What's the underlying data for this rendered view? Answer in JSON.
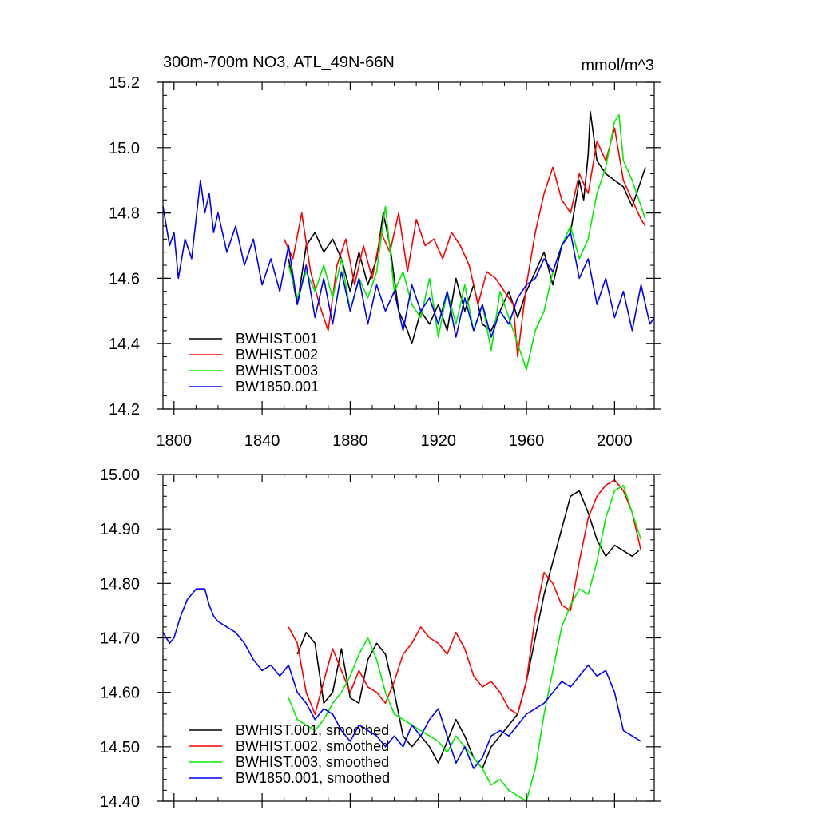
{
  "chart_data": [
    {
      "type": "line",
      "title": "300m-700m NO3, ATL_49N-66N",
      "units_label": "mmol/m^3",
      "xlim": [
        1795,
        2018
      ],
      "ylim": [
        14.2,
        15.2
      ],
      "x_ticks": [
        1800,
        1840,
        1880,
        1920,
        1960,
        2000
      ],
      "x_tick_labels": [
        "1800",
        "1840",
        "1880",
        "1920",
        "1960",
        "2000"
      ],
      "y_ticks": [
        14.2,
        14.4,
        14.6,
        14.8,
        15.0,
        15.2
      ],
      "y_tick_labels": [
        "14.2",
        "14.4",
        "14.6",
        "14.8",
        "15.0",
        "15.2"
      ],
      "legend_position": "bottom-left",
      "series": [
        {
          "name": "BWHIST.001",
          "color": "#000000",
          "x": [
            1852,
            1856,
            1860,
            1864,
            1868,
            1872,
            1876,
            1880,
            1884,
            1888,
            1892,
            1895,
            1898,
            1902,
            1906,
            1908,
            1912,
            1916,
            1920,
            1924,
            1928,
            1932,
            1936,
            1940,
            1944,
            1948,
            1952,
            1956,
            1960,
            1964,
            1968,
            1972,
            1976,
            1980,
            1984,
            1986,
            1988,
            1989,
            1992,
            1996,
            2000,
            2004,
            2008,
            2012,
            2014
          ],
          "values": [
            14.66,
            14.52,
            14.7,
            14.74,
            14.68,
            14.72,
            14.66,
            14.56,
            14.68,
            14.58,
            14.66,
            14.8,
            14.7,
            14.5,
            14.44,
            14.4,
            14.5,
            14.46,
            14.52,
            14.44,
            14.6,
            14.5,
            14.58,
            14.46,
            14.44,
            14.5,
            14.56,
            14.48,
            14.56,
            14.62,
            14.68,
            14.58,
            14.7,
            14.74,
            14.9,
            14.84,
            14.98,
            15.11,
            14.96,
            14.92,
            14.9,
            14.88,
            14.82,
            14.9,
            14.94
          ]
        },
        {
          "name": "BWHIST.002",
          "color": "#ff0000",
          "x": [
            1850,
            1854,
            1858,
            1862,
            1866,
            1870,
            1874,
            1878,
            1882,
            1886,
            1890,
            1894,
            1898,
            1902,
            1906,
            1910,
            1914,
            1918,
            1922,
            1926,
            1930,
            1934,
            1938,
            1942,
            1946,
            1950,
            1954,
            1956,
            1960,
            1964,
            1968,
            1972,
            1976,
            1980,
            1984,
            1988,
            1992,
            1996,
            2000,
            2004,
            2008,
            2012,
            2014
          ],
          "values": [
            14.72,
            14.66,
            14.8,
            14.62,
            14.52,
            14.44,
            14.64,
            14.72,
            14.58,
            14.7,
            14.6,
            14.74,
            14.68,
            14.8,
            14.62,
            14.78,
            14.7,
            14.72,
            14.66,
            14.74,
            14.7,
            14.64,
            14.52,
            14.62,
            14.6,
            14.56,
            14.52,
            14.36,
            14.58,
            14.74,
            14.86,
            14.94,
            14.84,
            14.8,
            14.92,
            14.86,
            15.02,
            14.96,
            15.06,
            14.9,
            14.84,
            14.78,
            14.76
          ]
        },
        {
          "name": "BWHIST.003",
          "color": "#00ee00",
          "x": [
            1852,
            1856,
            1860,
            1864,
            1868,
            1872,
            1876,
            1880,
            1884,
            1888,
            1892,
            1896,
            1900,
            1904,
            1908,
            1912,
            1916,
            1920,
            1924,
            1928,
            1932,
            1936,
            1940,
            1944,
            1948,
            1952,
            1956,
            1960,
            1964,
            1968,
            1972,
            1976,
            1980,
            1984,
            1988,
            1992,
            1996,
            2000,
            2002,
            2004,
            2008,
            2012,
            2014
          ],
          "values": [
            14.64,
            14.54,
            14.62,
            14.56,
            14.64,
            14.54,
            14.66,
            14.5,
            14.6,
            14.54,
            14.62,
            14.82,
            14.56,
            14.62,
            14.52,
            14.48,
            14.6,
            14.42,
            14.56,
            14.46,
            14.58,
            14.44,
            14.52,
            14.38,
            14.56,
            14.48,
            14.4,
            14.32,
            14.44,
            14.5,
            14.62,
            14.7,
            14.76,
            14.66,
            14.72,
            14.86,
            14.94,
            15.08,
            15.1,
            14.96,
            14.9,
            14.82,
            14.78
          ]
        },
        {
          "name": "BW1850.001",
          "color": "#0000ff",
          "x": [
            1795,
            1798,
            1800,
            1802,
            1805,
            1808,
            1810,
            1812,
            1814,
            1816,
            1818,
            1820,
            1824,
            1828,
            1832,
            1836,
            1840,
            1844,
            1848,
            1852,
            1856,
            1860,
            1864,
            1868,
            1872,
            1876,
            1880,
            1884,
            1888,
            1892,
            1896,
            1900,
            1904,
            1908,
            1912,
            1916,
            1920,
            1924,
            1928,
            1932,
            1936,
            1940,
            1944,
            1948,
            1952,
            1956,
            1960,
            1964,
            1968,
            1972,
            1976,
            1980,
            1984,
            1988,
            1992,
            1996,
            2000,
            2004,
            2008,
            2012,
            2016,
            2018
          ],
          "values": [
            14.82,
            14.7,
            14.74,
            14.6,
            14.72,
            14.66,
            14.78,
            14.9,
            14.8,
            14.86,
            14.74,
            14.8,
            14.68,
            14.76,
            14.64,
            14.72,
            14.58,
            14.66,
            14.56,
            14.7,
            14.52,
            14.64,
            14.48,
            14.6,
            14.46,
            14.62,
            14.5,
            14.6,
            14.46,
            14.58,
            14.5,
            14.56,
            14.44,
            14.58,
            14.5,
            14.54,
            14.46,
            14.56,
            14.42,
            14.54,
            14.44,
            14.52,
            14.42,
            14.5,
            14.46,
            14.54,
            14.58,
            14.6,
            14.66,
            14.62,
            14.7,
            14.74,
            14.6,
            14.66,
            14.52,
            14.6,
            14.48,
            14.56,
            14.44,
            14.58,
            14.46,
            14.48
          ]
        }
      ]
    },
    {
      "type": "line",
      "title": "",
      "xlim": [
        1795,
        2018
      ],
      "ylim": [
        14.4,
        15.0
      ],
      "x_ticks": [
        1800,
        1840,
        1880,
        1920,
        1960,
        2000
      ],
      "x_tick_labels": [],
      "y_ticks": [
        14.4,
        14.5,
        14.6,
        14.7,
        14.8,
        14.9,
        15.0
      ],
      "y_tick_labels": [
        "14.40",
        "14.50",
        "14.60",
        "14.70",
        "14.80",
        "14.90",
        "15.00"
      ],
      "legend_position": "bottom-left",
      "series": [
        {
          "name": "BWHIST.001, smoothed",
          "color": "#000000",
          "x": [
            1856,
            1860,
            1864,
            1868,
            1872,
            1876,
            1880,
            1884,
            1888,
            1892,
            1896,
            1900,
            1904,
            1908,
            1912,
            1916,
            1920,
            1924,
            1928,
            1932,
            1936,
            1940,
            1944,
            1948,
            1952,
            1956,
            1960,
            1964,
            1968,
            1972,
            1976,
            1980,
            1984,
            1988,
            1992,
            1996,
            2000,
            2004,
            2008,
            2011
          ],
          "values": [
            14.67,
            14.71,
            14.69,
            14.58,
            14.6,
            14.68,
            14.59,
            14.58,
            14.66,
            14.69,
            14.67,
            14.6,
            14.52,
            14.5,
            14.52,
            14.5,
            14.47,
            14.51,
            14.55,
            14.52,
            14.48,
            14.46,
            14.5,
            14.52,
            14.54,
            14.56,
            14.62,
            14.7,
            14.78,
            14.84,
            14.9,
            14.96,
            14.97,
            14.93,
            14.88,
            14.85,
            14.87,
            14.86,
            14.85,
            14.86
          ]
        },
        {
          "name": "BWHIST.002, smoothed",
          "color": "#ff0000",
          "x": [
            1852,
            1856,
            1860,
            1864,
            1868,
            1872,
            1876,
            1880,
            1884,
            1888,
            1892,
            1896,
            1900,
            1904,
            1908,
            1912,
            1916,
            1920,
            1924,
            1928,
            1932,
            1936,
            1940,
            1944,
            1948,
            1952,
            1956,
            1960,
            1964,
            1968,
            1972,
            1976,
            1980,
            1984,
            1988,
            1992,
            1996,
            2000,
            2004,
            2008,
            2012
          ],
          "values": [
            14.72,
            14.69,
            14.6,
            14.56,
            14.62,
            14.68,
            14.64,
            14.6,
            14.64,
            14.61,
            14.6,
            14.58,
            14.62,
            14.67,
            14.69,
            14.72,
            14.7,
            14.69,
            14.67,
            14.71,
            14.68,
            14.63,
            14.61,
            14.62,
            14.6,
            14.57,
            14.56,
            14.62,
            14.74,
            14.82,
            14.8,
            14.76,
            14.75,
            14.84,
            14.92,
            14.96,
            14.98,
            14.99,
            14.97,
            14.93,
            14.86
          ]
        },
        {
          "name": "BWHIST.003, smoothed",
          "color": "#00ee00",
          "x": [
            1852,
            1856,
            1860,
            1864,
            1868,
            1872,
            1876,
            1880,
            1884,
            1888,
            1892,
            1896,
            1900,
            1904,
            1908,
            1912,
            1916,
            1920,
            1924,
            1928,
            1932,
            1936,
            1940,
            1944,
            1948,
            1952,
            1956,
            1960,
            1964,
            1968,
            1972,
            1976,
            1980,
            1984,
            1988,
            1992,
            1996,
            2000,
            2004,
            2008,
            2012
          ],
          "values": [
            14.59,
            14.55,
            14.54,
            14.53,
            14.55,
            14.58,
            14.6,
            14.63,
            14.67,
            14.7,
            14.66,
            14.6,
            14.56,
            14.55,
            14.54,
            14.53,
            14.52,
            14.51,
            14.49,
            14.52,
            14.5,
            14.48,
            14.46,
            14.43,
            14.44,
            14.42,
            14.41,
            14.4,
            14.46,
            14.56,
            14.64,
            14.72,
            14.76,
            14.79,
            14.78,
            14.84,
            14.92,
            14.97,
            14.98,
            14.93,
            14.88
          ]
        },
        {
          "name": "BW1850.001, smoothed",
          "color": "#0000ff",
          "x": [
            1795,
            1798,
            1800,
            1803,
            1806,
            1810,
            1814,
            1816,
            1818,
            1820,
            1824,
            1828,
            1832,
            1836,
            1840,
            1844,
            1848,
            1852,
            1856,
            1860,
            1864,
            1868,
            1872,
            1876,
            1880,
            1884,
            1888,
            1892,
            1896,
            1900,
            1904,
            1908,
            1912,
            1916,
            1920,
            1924,
            1928,
            1932,
            1936,
            1940,
            1944,
            1948,
            1952,
            1956,
            1960,
            1964,
            1968,
            1972,
            1976,
            1980,
            1984,
            1988,
            1992,
            1996,
            2000,
            2004,
            2008,
            2012
          ],
          "values": [
            14.71,
            14.69,
            14.7,
            14.74,
            14.77,
            14.79,
            14.79,
            14.76,
            14.74,
            14.73,
            14.72,
            14.71,
            14.69,
            14.66,
            14.64,
            14.65,
            14.63,
            14.65,
            14.6,
            14.58,
            14.55,
            14.57,
            14.56,
            14.53,
            14.51,
            14.54,
            14.53,
            14.52,
            14.5,
            14.52,
            14.5,
            14.54,
            14.52,
            14.55,
            14.57,
            14.52,
            14.47,
            14.5,
            14.46,
            14.48,
            14.52,
            14.53,
            14.52,
            14.54,
            14.56,
            14.57,
            14.58,
            14.6,
            14.62,
            14.61,
            14.63,
            14.65,
            14.63,
            14.64,
            14.6,
            14.53,
            14.52,
            14.51
          ]
        }
      ]
    }
  ]
}
